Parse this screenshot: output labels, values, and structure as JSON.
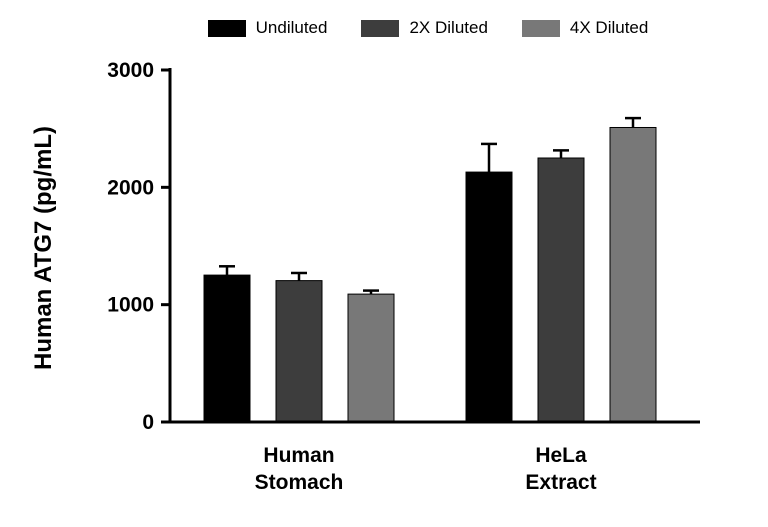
{
  "chart_data": {
    "type": "bar",
    "title": "",
    "ylabel": "Human ATG7 (pg/mL)",
    "xlabel": "",
    "categories": [
      "Human\nStomach",
      "HeLa\nExtract"
    ],
    "series": [
      {
        "name": "Undiluted",
        "color": "#000000",
        "values": [
          1252,
          2130
        ],
        "errors": [
          75,
          240
        ]
      },
      {
        "name": "2X Diluted",
        "color": "#3d3d3d",
        "values": [
          1205,
          2250
        ],
        "errors": [
          65,
          65
        ]
      },
      {
        "name": "4X Diluted",
        "color": "#787878",
        "values": [
          1090,
          2510
        ],
        "errors": [
          30,
          80
        ]
      }
    ],
    "ylim": [
      0,
      3000
    ],
    "yticks": [
      0,
      1000,
      2000,
      3000
    ],
    "grid": false,
    "legend_position": "top",
    "error_bars": "upper",
    "bar_edge_color": "#000000"
  }
}
